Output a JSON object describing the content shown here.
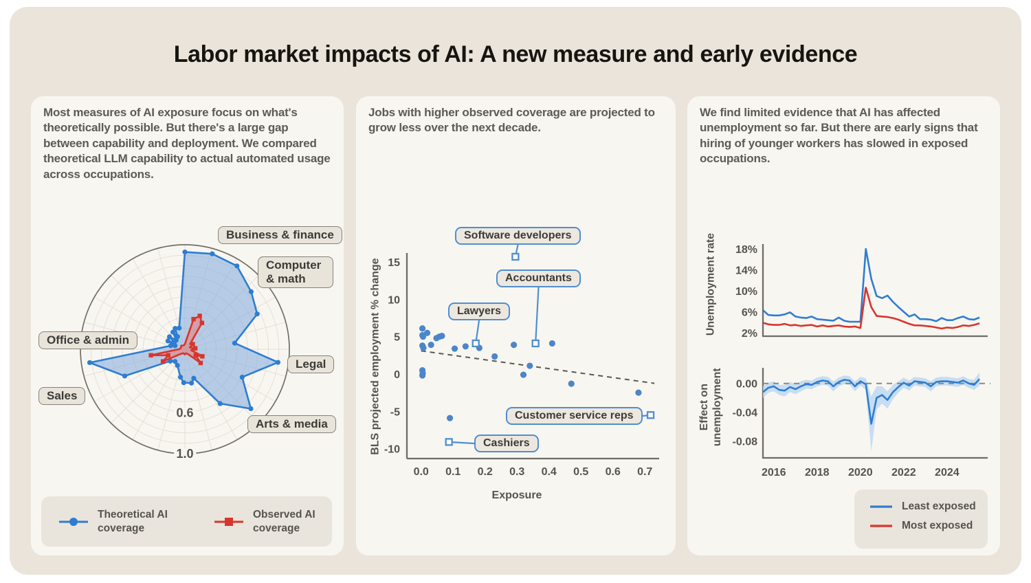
{
  "title": "Labor market impacts of AI: A new measure and early evidence",
  "colors": {
    "blue": "#2E7DD1",
    "blue_fill": "#7FA9DC",
    "red": "#D8352D",
    "red_fill": "#EE7A74",
    "scatter_dot": "#4C86C9",
    "anno_border": "#4E8FD0",
    "band": "#BAD7F1",
    "axis": "#6E6C66",
    "grid": "#E6E0D4",
    "trend": "#5A5850"
  },
  "panels": {
    "coverage": {
      "text": "Most measures of AI exposure focus on what's theoretically possible. But there's a large gap between capability and deployment. We compared theoretical LLM capability to actual automated usage across occupations."
    },
    "scatter": {
      "text": "Jobs with higher observed coverage are projected to grow less over the next decade."
    },
    "lines": {
      "text": "We find limited evidence that AI has affected unemployment so far. But there are early signs that hiring of younger workers has slowed in exposed occupations."
    }
  },
  "chart_data": [
    {
      "type": "radar",
      "max": 1.0,
      "ring_labels": [
        {
          "r": 0.61,
          "label": "0.6"
        },
        {
          "r": 1.0,
          "label": "1.0"
        }
      ],
      "labels": [
        {
          "text": "Business & finance"
        },
        {
          "text": "Computer & math"
        },
        {
          "text": "Legal"
        },
        {
          "text": "Arts & media"
        },
        {
          "text": "Sales"
        },
        {
          "text": "Office & admin"
        }
      ],
      "series": [
        {
          "name": "Theoretical AI coverage",
          "marker": "circle",
          "points": [
            [
              0,
              0.93
            ],
            [
              16,
              0.95
            ],
            [
              32,
              0.94
            ],
            [
              49,
              0.84
            ],
            [
              64,
              0.77
            ],
            [
              83,
              0.48
            ],
            [
              98,
              0.9
            ],
            [
              116,
              0.61
            ],
            [
              132,
              0.85
            ],
            [
              147,
              0.62
            ],
            [
              163,
              0.29
            ],
            [
              169,
              0.33
            ],
            [
              182,
              0.32
            ],
            [
              189,
              0.27
            ],
            [
              205,
              0.17
            ],
            [
              219,
              0.15
            ],
            [
              231,
              0.18
            ],
            [
              246,
              0.63
            ],
            [
              262,
              0.92
            ],
            [
              284,
              0.14
            ],
            [
              290,
              0.1
            ],
            [
              296,
              0.18
            ],
            [
              302,
              0.12
            ],
            [
              309,
              0.19
            ],
            [
              316,
              0.12
            ],
            [
              325,
              0.2
            ],
            [
              330,
              0.14
            ],
            [
              335,
              0.22
            ],
            [
              345,
              0.21
            ]
          ]
        },
        {
          "name": "Observed AI coverage",
          "marker": "square",
          "points": [
            [
              0,
              0.05
            ],
            [
              16,
              0.3
            ],
            [
              24,
              0.35
            ],
            [
              33,
              0.3
            ],
            [
              45,
              0.07
            ],
            [
              57,
              0.09
            ],
            [
              70,
              0.05
            ],
            [
              85,
              0.1
            ],
            [
              98,
              0.06
            ],
            [
              112,
              0.18
            ],
            [
              120,
              0.12
            ],
            [
              131,
              0.2
            ],
            [
              145,
              0.06
            ],
            [
              162,
              0.04
            ],
            [
              180,
              0.05
            ],
            [
              200,
              0.04
            ],
            [
              222,
              0.06
            ],
            [
              241,
              0.24
            ],
            [
              250,
              0.17
            ],
            [
              260,
              0.33
            ],
            [
              272,
              0.05
            ],
            [
              292,
              0.04
            ],
            [
              312,
              0.05
            ],
            [
              332,
              0.04
            ],
            [
              348,
              0.04
            ]
          ]
        }
      ]
    },
    {
      "type": "scatter",
      "xlabel": "Exposure",
      "ylabel": "BLS projected employment % change",
      "x_ticks": [
        0.0,
        0.1,
        0.2,
        0.3,
        0.4,
        0.5,
        0.6,
        0.7
      ],
      "y_ticks": [
        15,
        10,
        5,
        0,
        -5,
        -10
      ],
      "xlim": [
        -0.04,
        0.75
      ],
      "ylim": [
        -11.5,
        16.5
      ],
      "points": [
        [
          0.004,
          6.1
        ],
        [
          0.004,
          5.2
        ],
        [
          0.006,
          5.0
        ],
        [
          0.004,
          3.8
        ],
        [
          0.007,
          3.5
        ],
        [
          0.019,
          5.5
        ],
        [
          0.031,
          3.9
        ],
        [
          0.048,
          4.8
        ],
        [
          0.057,
          5.0
        ],
        [
          0.065,
          5.1
        ],
        [
          0.004,
          0.5
        ],
        [
          0.005,
          0.1
        ],
        [
          0.004,
          -0.2
        ],
        [
          0.105,
          3.4
        ],
        [
          0.139,
          3.7
        ],
        [
          0.182,
          3.5
        ],
        [
          0.23,
          2.35
        ],
        [
          0.29,
          3.9
        ],
        [
          0.32,
          -0.1
        ],
        [
          0.34,
          1.1
        ],
        [
          0.41,
          4.1
        ],
        [
          0.47,
          -1.3
        ],
        [
          0.68,
          -2.5
        ],
        [
          0.09,
          -5.9
        ]
      ],
      "annotations": [
        {
          "label": "Software developers",
          "x": 0.295,
          "y": 15.7,
          "side": "bottom"
        },
        {
          "label": "Accountants",
          "x": 0.358,
          "y": 4.1,
          "side": "bottom"
        },
        {
          "label": "Lawyers",
          "x": 0.171,
          "y": 4.1,
          "side": "bottom"
        },
        {
          "label": "Customer service reps",
          "x": 0.718,
          "y": -5.5,
          "side": "right"
        },
        {
          "label": "Cashiers",
          "x": 0.087,
          "y": -9.1,
          "side": "left"
        }
      ],
      "trend": {
        "x1": 0.0,
        "y1": 3.1,
        "x2": 0.73,
        "y2": -1.25
      }
    },
    {
      "type": "line",
      "ylabel": "Unemployment rate",
      "y_ticks": [
        18,
        14,
        10,
        6,
        2
      ],
      "x_start": 2015.5,
      "x_step": 0.25,
      "series": [
        {
          "name": "Least exposed",
          "values": [
            6.3,
            5.4,
            5.3,
            5.3,
            5.5,
            5.9,
            5.1,
            4.9,
            4.8,
            5.1,
            4.6,
            4.5,
            4.4,
            4.3,
            4.9,
            4.3,
            4.1,
            4.1,
            4.1,
            18.0,
            12.3,
            9.0,
            8.6,
            9.1,
            7.9,
            6.9,
            6.0,
            5.1,
            5.5,
            4.6,
            4.6,
            4.5,
            4.2,
            4.8,
            4.4,
            4.4,
            4.8,
            5.1,
            4.6,
            4.5,
            4.9
          ]
        },
        {
          "name": "Most exposed",
          "values": [
            3.9,
            3.6,
            3.5,
            3.5,
            3.7,
            3.4,
            3.5,
            3.3,
            3.4,
            3.5,
            3.2,
            3.4,
            3.2,
            3.3,
            3.4,
            3.2,
            3.1,
            3.2,
            2.9,
            10.6,
            6.9,
            5.2,
            5.1,
            5.0,
            4.8,
            4.5,
            4.1,
            3.7,
            3.4,
            3.4,
            3.3,
            3.2,
            3.0,
            2.8,
            3.0,
            2.9,
            3.1,
            3.4,
            3.3,
            3.5,
            3.8
          ]
        }
      ]
    },
    {
      "type": "line-band",
      "ylabel": "Effect on unemployment",
      "y_ticks": [
        0.0,
        -0.04,
        -0.08
      ],
      "x_ticks": [
        2016,
        2018,
        2020,
        2022,
        2024
      ],
      "zero_line": true,
      "x_start": 2015.5,
      "x_step": 0.25,
      "series": [
        {
          "name": "Effect on unemployment",
          "values": [
            -0.012,
            -0.006,
            -0.004,
            -0.009,
            -0.01,
            -0.005,
            -0.008,
            -0.004,
            -0.001,
            -0.002,
            0.002,
            0.004,
            0.003,
            -0.004,
            0.002,
            0.005,
            0.004,
            -0.004,
            0.003,
            -0.001,
            -0.056,
            -0.02,
            -0.016,
            -0.023,
            -0.012,
            -0.005,
            0.001,
            -0.003,
            0.003,
            0.002,
            0.001,
            -0.004,
            0.002,
            0.003,
            0.003,
            0.002,
            0.001,
            0.004,
            0.0,
            -0.002,
            0.006
          ],
          "band": [
            0.008,
            0.007,
            0.007,
            0.007,
            0.008,
            0.007,
            0.007,
            0.007,
            0.006,
            0.006,
            0.006,
            0.006,
            0.006,
            0.007,
            0.006,
            0.006,
            0.006,
            0.007,
            0.006,
            0.008,
            0.038,
            0.016,
            0.012,
            0.012,
            0.01,
            0.008,
            0.007,
            0.007,
            0.006,
            0.006,
            0.006,
            0.007,
            0.006,
            0.006,
            0.006,
            0.006,
            0.006,
            0.006,
            0.006,
            0.007,
            0.009
          ]
        }
      ]
    }
  ],
  "legends": {
    "radar": [
      {
        "label": "Theoretical AI coverage"
      },
      {
        "label": "Observed AI coverage"
      }
    ],
    "lines": [
      {
        "label": "Least exposed"
      },
      {
        "label": "Most exposed"
      }
    ]
  }
}
